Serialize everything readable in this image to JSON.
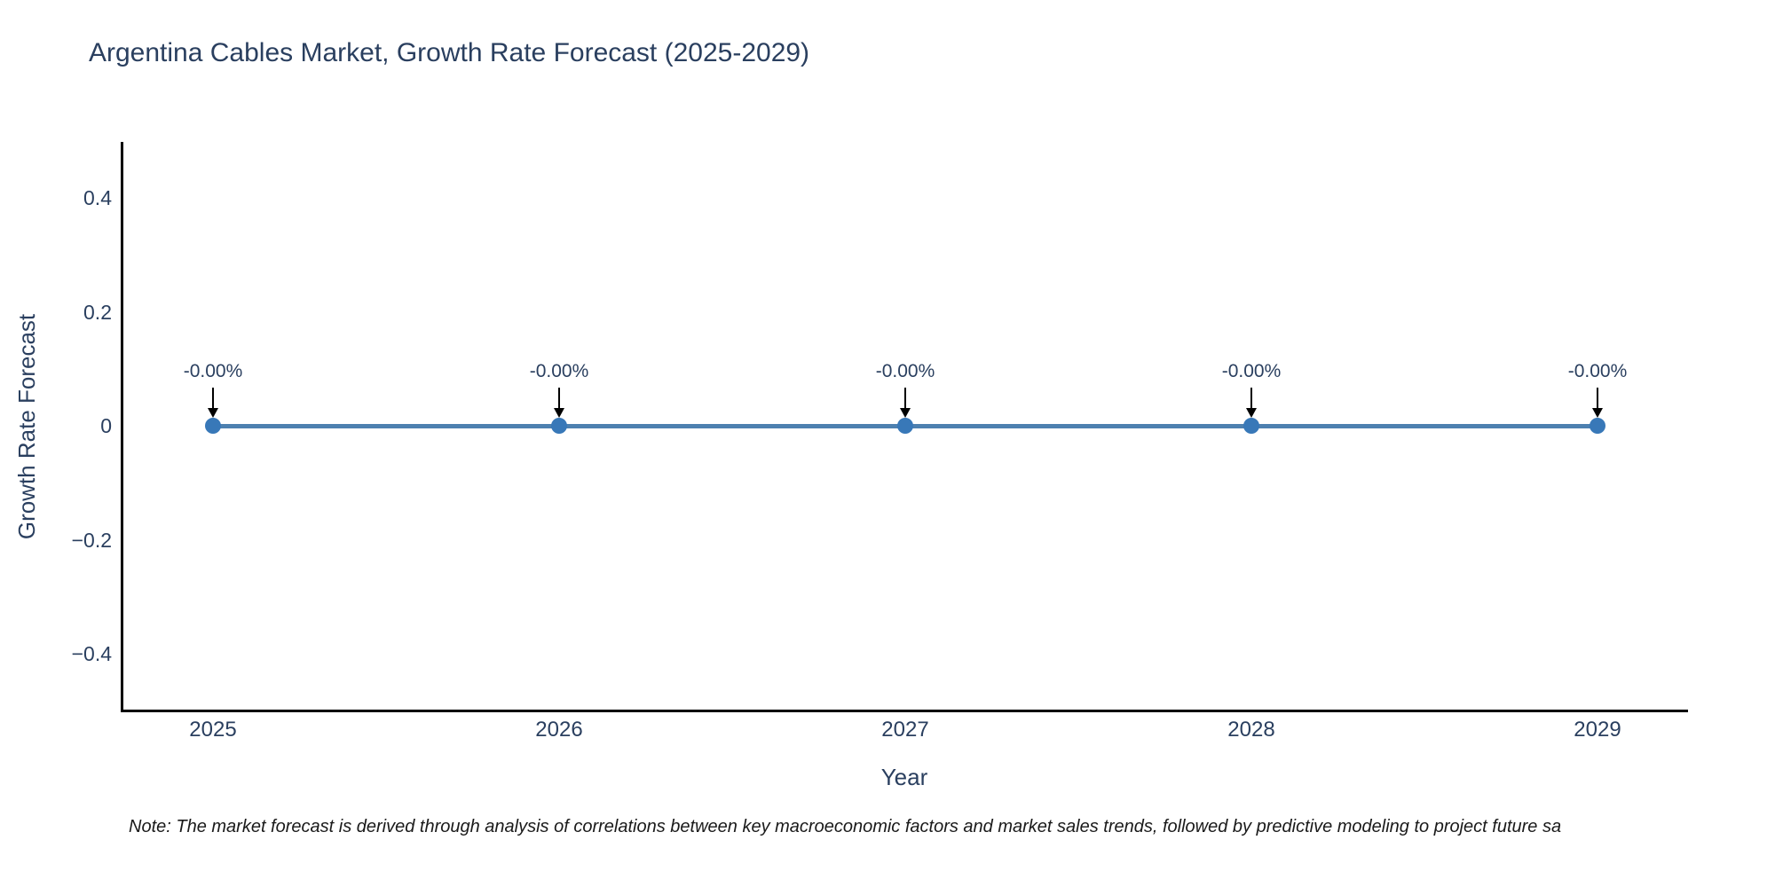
{
  "note": {
    "text": "Note: The market forecast is derived through analysis of correlations between key macroeconomic factors and market sales trends, followed by predictive modeling to project future sa"
  },
  "chart_data": {
    "type": "line",
    "title": "Argentina Cables Market, Growth Rate Forecast (2025-2029)",
    "xlabel": "Year",
    "ylabel": "Growth Rate Forecast",
    "categories": [
      "2025",
      "2026",
      "2027",
      "2028",
      "2029"
    ],
    "series": [
      {
        "name": "Growth Rate Forecast",
        "values": [
          0,
          0,
          0,
          0,
          0
        ]
      }
    ],
    "point_labels": [
      "-0.00%",
      "-0.00%",
      "-0.00%",
      "-0.00%",
      "-0.00%"
    ],
    "ylim": [
      -0.5,
      0.5
    ],
    "yticks": {
      "values": [
        0.4,
        0.2,
        0,
        -0.2,
        -0.4
      ],
      "labels": [
        "0.4",
        "0.2",
        "0",
        "−0.2",
        "−0.4"
      ]
    },
    "grid": false,
    "legend_position": "none",
    "annotations_have_arrows": true,
    "colors": {
      "line": "#4d80b0",
      "marker": "#3878b8",
      "axis": "#000000",
      "text": "#2a3f5f",
      "arrow": "#000000",
      "background": "#ffffff"
    }
  }
}
